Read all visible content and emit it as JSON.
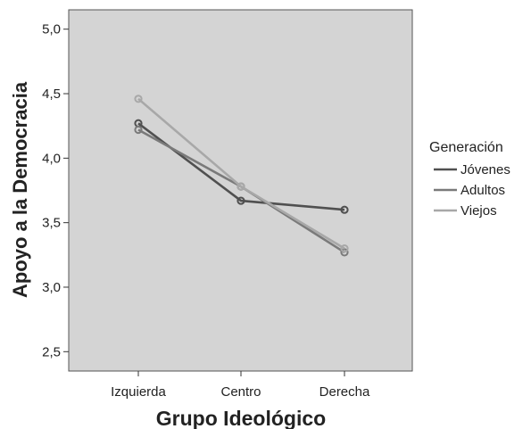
{
  "chart_data": {
    "type": "line",
    "xlabel": "Grupo Ideológico",
    "ylabel": "Apoyo a la Democracia",
    "categories": [
      "Izquierda",
      "Centro",
      "Derecha"
    ],
    "ylim": [
      2.35,
      5.15
    ],
    "yticks": [
      "2,5",
      "3,0",
      "3,5",
      "4,0",
      "4,5",
      "5,0"
    ],
    "ytick_values": [
      2.5,
      3.0,
      3.5,
      4.0,
      4.5,
      5.0
    ],
    "grid": false,
    "legend": {
      "title": "Generación",
      "placement": "right"
    },
    "series": [
      {
        "name": "Jóvenes",
        "values": [
          4.27,
          3.67,
          3.6
        ],
        "color": "#505050"
      },
      {
        "name": "Adultos",
        "values": [
          4.22,
          3.78,
          3.27
        ],
        "color": "#7a7a7a"
      },
      {
        "name": "Viejos",
        "values": [
          4.46,
          3.78,
          3.3
        ],
        "color": "#a8a8a8"
      }
    ],
    "plot_background": "#d4d4d4"
  }
}
